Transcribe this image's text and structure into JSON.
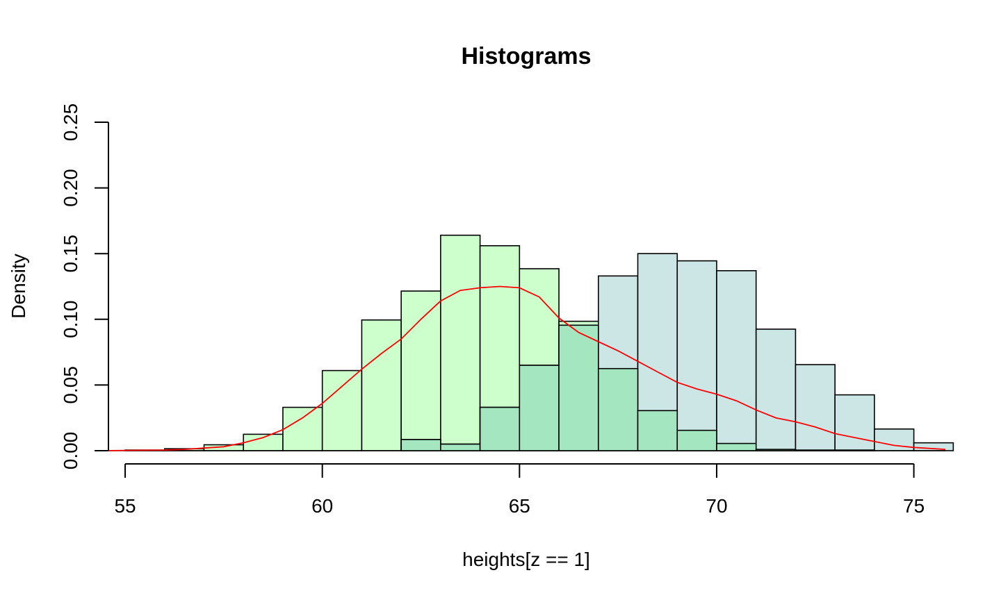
{
  "chart_data": {
    "type": "bar",
    "title": "Histograms",
    "xlabel": "heights[z == 1]",
    "ylabel": "Density",
    "xlim": [
      54.4,
      75.8
    ],
    "ylim": [
      0,
      0.25
    ],
    "x_ticks": [
      "55",
      "60",
      "65",
      "70",
      "75"
    ],
    "y_ticks": [
      "0.00",
      "0.05",
      "0.10",
      "0.15",
      "0.20",
      "0.25"
    ],
    "bin_width": 1,
    "series": [
      {
        "color": "#ccffcc",
        "bins": [
          {
            "start": 55,
            "value": 0.0005
          },
          {
            "start": 56,
            "value": 0.0015
          },
          {
            "start": 57,
            "value": 0.0045
          },
          {
            "start": 58,
            "value": 0.0125
          },
          {
            "start": 59,
            "value": 0.033
          },
          {
            "start": 60,
            "value": 0.061
          },
          {
            "start": 61,
            "value": 0.0995
          },
          {
            "start": 62,
            "value": 0.1215
          },
          {
            "start": 63,
            "value": 0.164
          },
          {
            "start": 64,
            "value": 0.156
          },
          {
            "start": 65,
            "value": 0.1385
          },
          {
            "start": 66,
            "value": 0.0985
          },
          {
            "start": 67,
            "value": 0.0625
          },
          {
            "start": 68,
            "value": 0.0305
          },
          {
            "start": 69,
            "value": 0.0155
          },
          {
            "start": 70,
            "value": 0.0055
          },
          {
            "start": 71,
            "value": 0.001
          },
          {
            "start": 72,
            "value": 0.0005
          },
          {
            "start": 73,
            "value": 0.0005
          }
        ]
      },
      {
        "color": "#cce5e5",
        "bins": [
          {
            "start": 62,
            "value": 0.0085
          },
          {
            "start": 63,
            "value": 0.005
          },
          {
            "start": 64,
            "value": 0.033
          },
          {
            "start": 65,
            "value": 0.065
          },
          {
            "start": 66,
            "value": 0.0955
          },
          {
            "start": 67,
            "value": 0.133
          },
          {
            "start": 68,
            "value": 0.15
          },
          {
            "start": 69,
            "value": 0.1445
          },
          {
            "start": 70,
            "value": 0.137
          },
          {
            "start": 71,
            "value": 0.0925
          },
          {
            "start": 72,
            "value": 0.0655
          },
          {
            "start": 73,
            "value": 0.0425
          },
          {
            "start": 74,
            "value": 0.0165
          },
          {
            "start": 75,
            "value": 0.006
          }
        ]
      }
    ],
    "overlap_color": "#a3e6bf",
    "density_line": {
      "color": "#ff0000",
      "points": [
        [
          54.4,
          0.0
        ],
        [
          55,
          0.0002
        ],
        [
          55.5,
          0.0003
        ],
        [
          56,
          0.0005
        ],
        [
          56.5,
          0.001
        ],
        [
          57,
          0.002
        ],
        [
          57.5,
          0.003
        ],
        [
          58,
          0.006
        ],
        [
          58.5,
          0.01
        ],
        [
          59,
          0.016
        ],
        [
          59.5,
          0.025
        ],
        [
          60,
          0.036
        ],
        [
          60.5,
          0.049
        ],
        [
          61,
          0.062
        ],
        [
          61.5,
          0.074
        ],
        [
          62,
          0.085
        ],
        [
          62.5,
          0.1
        ],
        [
          63,
          0.114
        ],
        [
          63.5,
          0.122
        ],
        [
          64,
          0.124
        ],
        [
          64.5,
          0.125
        ],
        [
          65,
          0.124
        ],
        [
          65.5,
          0.117
        ],
        [
          66,
          0.101
        ],
        [
          66.5,
          0.09
        ],
        [
          67,
          0.083
        ],
        [
          67.5,
          0.076
        ],
        [
          68,
          0.068
        ],
        [
          68.5,
          0.06
        ],
        [
          69,
          0.052
        ],
        [
          69.5,
          0.047
        ],
        [
          70,
          0.043
        ],
        [
          70.5,
          0.038
        ],
        [
          71,
          0.031
        ],
        [
          71.5,
          0.025
        ],
        [
          72,
          0.022
        ],
        [
          72.5,
          0.018
        ],
        [
          73,
          0.013
        ],
        [
          73.5,
          0.01
        ],
        [
          74,
          0.007
        ],
        [
          74.5,
          0.004
        ],
        [
          75,
          0.0025
        ],
        [
          75.8,
          0.001
        ]
      ]
    }
  }
}
